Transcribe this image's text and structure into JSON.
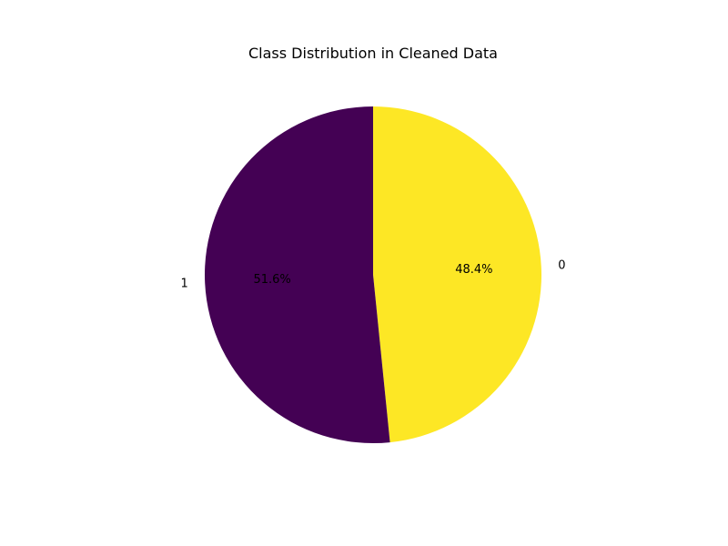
{
  "chart_data": {
    "type": "pie",
    "title": "Class Distribution in Cleaned Data",
    "slices": [
      {
        "label": "0",
        "value": 48.4,
        "pct_label": "48.4%",
        "color": "#fde725"
      },
      {
        "label": "1",
        "value": 51.6,
        "pct_label": "51.6%",
        "color": "#440154"
      }
    ],
    "start_angle_deg": 90,
    "direction": "clockwise"
  }
}
